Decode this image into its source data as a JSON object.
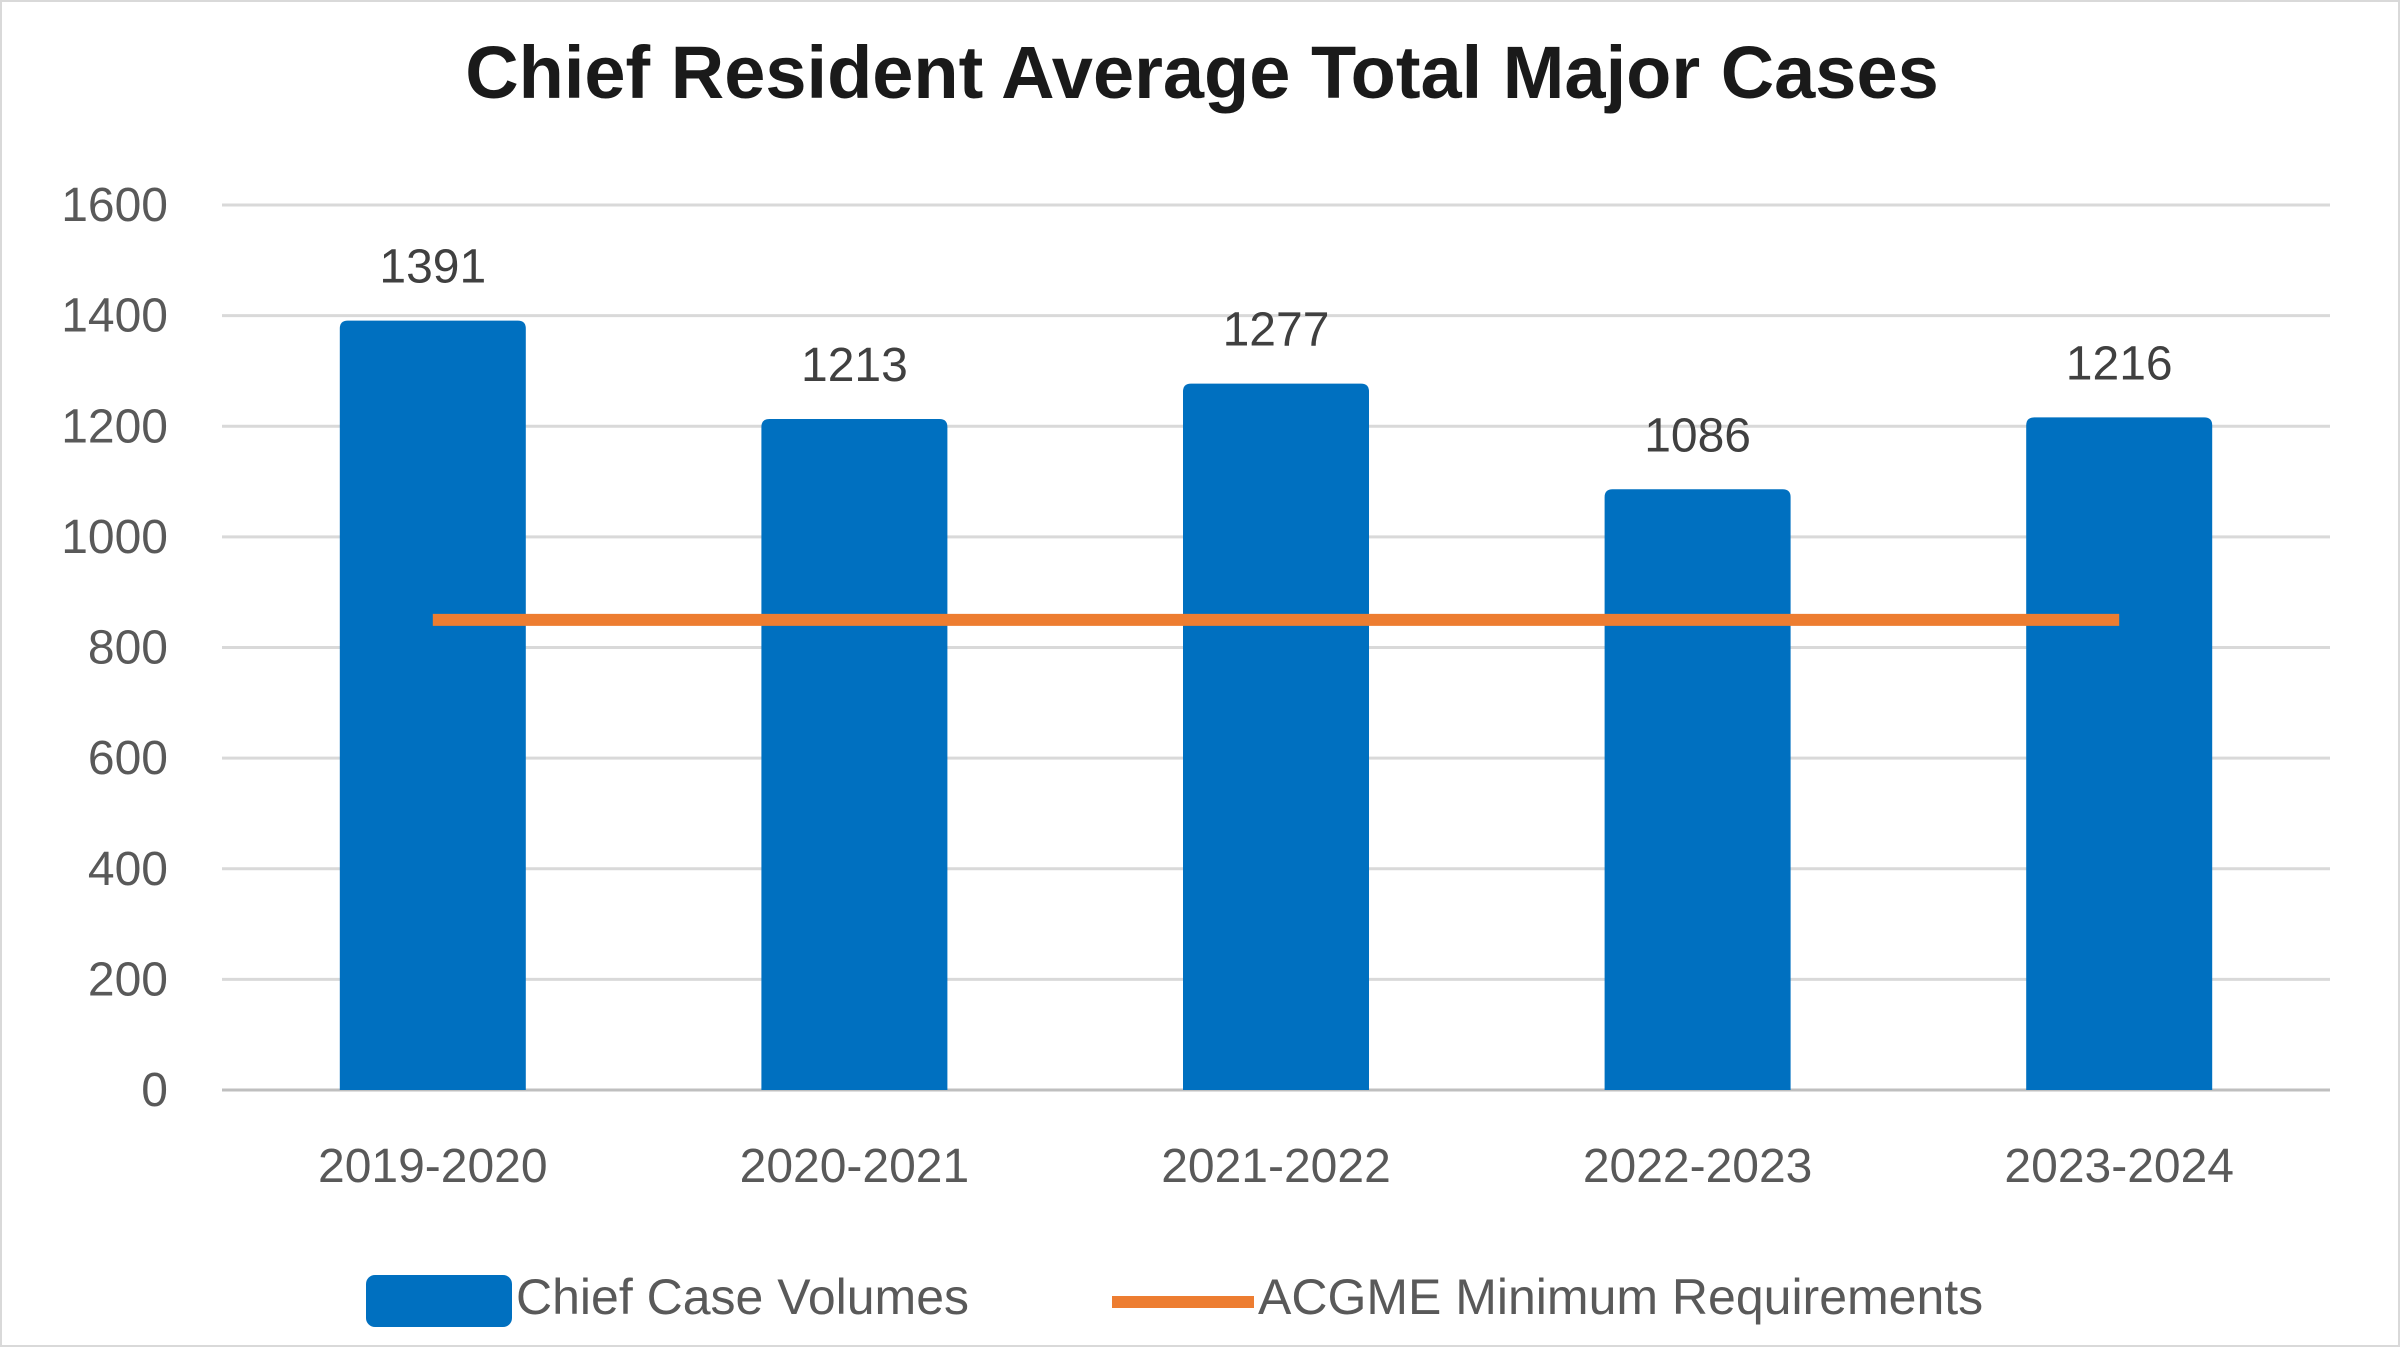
{
  "chart_data": {
    "type": "bar",
    "title": "Chief Resident Average Total Major Cases",
    "categories": [
      "2019-2020",
      "2020-2021",
      "2021-2022",
      "2022-2023",
      "2023-2024"
    ],
    "series": [
      {
        "name": "Chief Case Volumes",
        "kind": "bar",
        "color": "#0070c0",
        "values": [
          1391,
          1213,
          1277,
          1086,
          1216
        ]
      },
      {
        "name": "ACGME Minimum Requirements",
        "kind": "line",
        "color": "#ed7d31",
        "values": [
          850,
          850,
          850,
          850,
          850
        ]
      }
    ],
    "data_labels": [
      "1391",
      "1213",
      "1277",
      "1086",
      "1216"
    ],
    "ylim": [
      0,
      1600
    ],
    "yticks": [
      0,
      200,
      400,
      600,
      800,
      1000,
      1200,
      1400,
      1600
    ],
    "xlabel": "",
    "ylabel": "",
    "grid": true,
    "legend": "bottom-center"
  }
}
